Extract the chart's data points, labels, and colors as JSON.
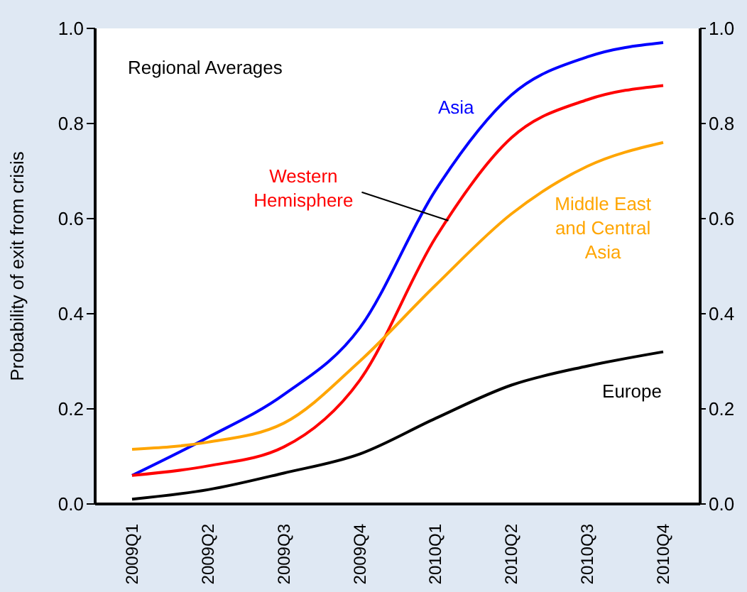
{
  "chart_data": {
    "type": "line",
    "title": "Regional Averages",
    "ylabel": "Probability of exit from crisis",
    "categories": [
      "2009Q1",
      "2009Q2",
      "2009Q3",
      "2009Q4",
      "2010Q1",
      "2010Q2",
      "2010Q3",
      "2010Q4"
    ],
    "series": [
      {
        "name": "Asia",
        "color": "#0000ff",
        "values": [
          0.06,
          0.14,
          0.23,
          0.37,
          0.66,
          0.86,
          0.94,
          0.97
        ]
      },
      {
        "name": "Western Hemisphere",
        "color": "#ff0000",
        "values": [
          0.06,
          0.08,
          0.12,
          0.26,
          0.56,
          0.77,
          0.85,
          0.88
        ]
      },
      {
        "name": "Middle East and Central Asia",
        "color": "#ffa500",
        "values": [
          0.115,
          0.13,
          0.17,
          0.3,
          0.46,
          0.61,
          0.71,
          0.76
        ]
      },
      {
        "name": "Europe",
        "color": "#000000",
        "values": [
          0.01,
          0.03,
          0.065,
          0.105,
          0.18,
          0.25,
          0.29,
          0.32
        ]
      }
    ],
    "ylim": [
      0,
      1
    ],
    "yticks": [
      {
        "value": 0,
        "label": "0.0"
      },
      0.2,
      0.4,
      0.6,
      0.8,
      {
        "value": 1,
        "label": "1.0"
      }
    ],
    "y2lim": [
      0,
      1
    ],
    "y2ticks": [
      {
        "value": 0,
        "label": "0.0"
      },
      0.2,
      0.4,
      0.6,
      0.8,
      {
        "value": 1,
        "label": "1.0"
      }
    ]
  }
}
